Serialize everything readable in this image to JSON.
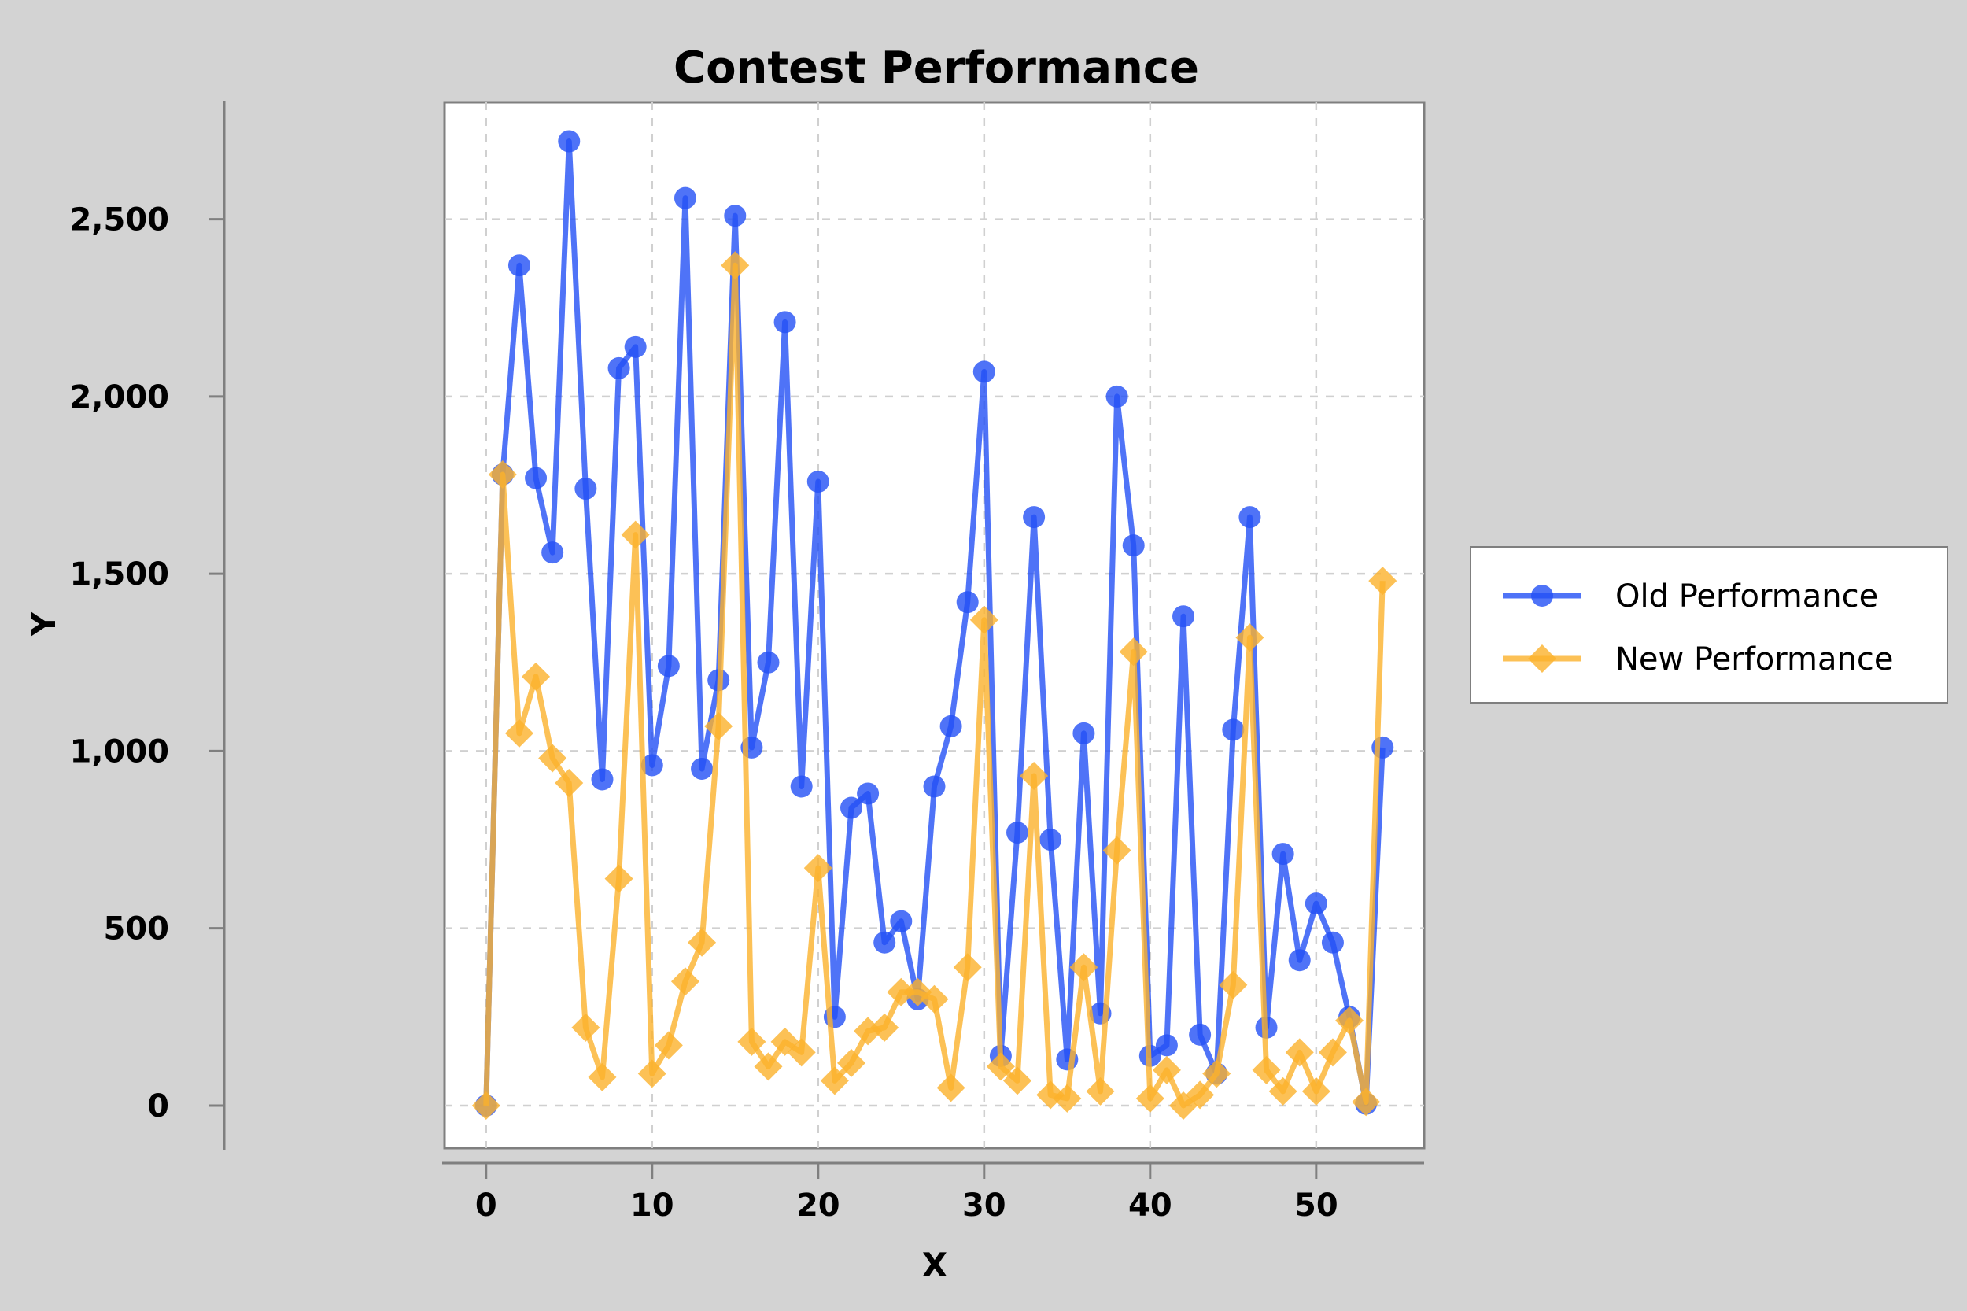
{
  "chart_data": {
    "type": "line",
    "title": "Contest Performance",
    "xlabel": "X",
    "ylabel": "Y",
    "xlim": [
      -2.5,
      56.5
    ],
    "ylim": [
      -120,
      2830
    ],
    "xticks": [
      0,
      10,
      20,
      30,
      40,
      50
    ],
    "yticks": [
      0,
      500,
      1000,
      1500,
      2000,
      2500
    ],
    "xtick_labels": [
      "0",
      "10",
      "20",
      "30",
      "40",
      "50"
    ],
    "ytick_labels": [
      "0",
      "500",
      "1,000",
      "1,500",
      "2,000",
      "2,500"
    ],
    "grid": true,
    "legend_position": "right",
    "x": [
      0,
      1,
      2,
      3,
      4,
      5,
      6,
      7,
      8,
      9,
      10,
      11,
      12,
      13,
      14,
      15,
      16,
      17,
      18,
      19,
      20,
      21,
      22,
      23,
      24,
      25,
      26,
      27,
      28,
      29,
      30,
      31,
      32,
      33,
      34,
      35,
      36,
      37,
      38,
      39,
      40,
      41,
      42,
      43,
      44,
      45,
      46,
      47,
      48,
      49,
      50,
      51,
      52,
      53,
      54
    ],
    "series": [
      {
        "name": "Old Performance",
        "color": "#2350f5",
        "marker": "circle",
        "values": [
          0,
          1780,
          2370,
          1770,
          1560,
          2720,
          1740,
          920,
          2080,
          2140,
          960,
          1240,
          2560,
          950,
          1200,
          2510,
          1010,
          1250,
          2210,
          900,
          1760,
          250,
          840,
          880,
          460,
          520,
          300,
          900,
          1070,
          1420,
          2070,
          140,
          770,
          1660,
          750,
          130,
          1050,
          260,
          2000,
          1580,
          140,
          170,
          1380,
          200,
          90,
          1060,
          1660,
          220,
          710,
          410,
          570,
          460,
          250,
          5,
          1010
        ]
      },
      {
        "name": "New Performance",
        "color": "#fbb12c",
        "marker": "diamond",
        "values": [
          0,
          1780,
          1050,
          1210,
          980,
          910,
          220,
          80,
          640,
          1610,
          90,
          170,
          350,
          460,
          1070,
          2370,
          180,
          110,
          180,
          150,
          670,
          70,
          120,
          210,
          220,
          320,
          320,
          300,
          50,
          390,
          1370,
          110,
          70,
          930,
          30,
          20,
          390,
          40,
          720,
          1280,
          20,
          100,
          0,
          30,
          90,
          340,
          1320,
          100,
          40,
          150,
          40,
          150,
          240,
          10,
          1480
        ]
      }
    ]
  }
}
